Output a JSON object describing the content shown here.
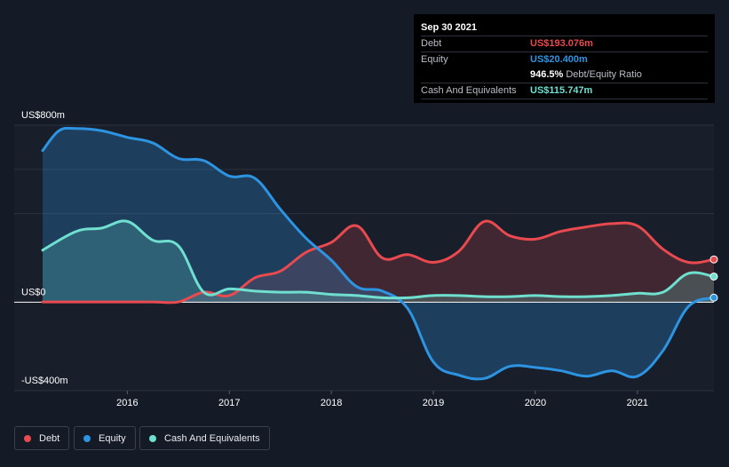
{
  "tooltip": {
    "date": "Sep 30 2021",
    "debt_label": "Debt",
    "debt_value": "US$193.076m",
    "equity_label": "Equity",
    "equity_value": "US$20.400m",
    "ratio_value": "946.5%",
    "ratio_label": "Debt/Equity Ratio",
    "cash_label": "Cash And Equivalents",
    "cash_value": "US$115.747m"
  },
  "legend": {
    "debt": "Debt",
    "equity": "Equity",
    "cash": "Cash And Equivalents"
  },
  "colors": {
    "debt": "#e84a4f",
    "equity": "#2d94e2",
    "cash": "#6fe0d0",
    "background": "#151b26"
  },
  "chart_data": {
    "type": "line",
    "title": "",
    "ylabel": "",
    "y_unit": "US$m",
    "ylim": [
      -400,
      800
    ],
    "y_ticks": [
      {
        "value": 800,
        "label": "US$800m"
      },
      {
        "value": 0,
        "label": "US$0"
      },
      {
        "value": -400,
        "label": "-US$400m"
      }
    ],
    "xlim": [
      2015.17,
      2021.75
    ],
    "x_ticks": [
      {
        "value": 2016,
        "label": "2016"
      },
      {
        "value": 2017,
        "label": "2017"
      },
      {
        "value": 2018,
        "label": "2018"
      },
      {
        "value": 2019,
        "label": "2019"
      },
      {
        "value": 2020,
        "label": "2020"
      },
      {
        "value": 2021,
        "label": "2021"
      }
    ],
    "series": [
      {
        "name": "Debt",
        "key": "debt",
        "x": [
          2015.17,
          2015.5,
          2015.75,
          2016.0,
          2016.25,
          2016.5,
          2016.75,
          2017.0,
          2017.25,
          2017.5,
          2017.75,
          2018.0,
          2018.25,
          2018.5,
          2018.75,
          2019.0,
          2019.25,
          2019.5,
          2019.75,
          2020.0,
          2020.25,
          2020.5,
          2020.75,
          2021.0,
          2021.25,
          2021.5,
          2021.75
        ],
        "values": [
          1,
          1,
          1,
          1,
          1,
          1,
          45,
          30,
          110,
          140,
          225,
          270,
          345,
          200,
          215,
          180,
          230,
          365,
          300,
          285,
          320,
          340,
          355,
          345,
          240,
          180,
          193.076
        ]
      },
      {
        "name": "Equity",
        "key": "equity",
        "x": [
          2015.17,
          2015.33,
          2015.5,
          2015.75,
          2016.0,
          2016.25,
          2016.5,
          2016.75,
          2017.0,
          2017.25,
          2017.5,
          2017.75,
          2018.0,
          2018.25,
          2018.5,
          2018.75,
          2019.0,
          2019.25,
          2019.5,
          2019.75,
          2020.0,
          2020.25,
          2020.5,
          2020.75,
          2021.0,
          2021.25,
          2021.5,
          2021.75
        ],
        "values": [
          685,
          775,
          785,
          775,
          745,
          720,
          650,
          640,
          570,
          560,
          420,
          290,
          190,
          70,
          50,
          -30,
          -270,
          -330,
          -345,
          -290,
          -295,
          -310,
          -335,
          -310,
          -335,
          -220,
          -20,
          20.4
        ]
      },
      {
        "name": "Cash And Equivalents",
        "key": "cash",
        "x": [
          2015.17,
          2015.5,
          2015.75,
          2016.0,
          2016.25,
          2016.5,
          2016.75,
          2017.0,
          2017.25,
          2017.5,
          2017.75,
          2018.0,
          2018.25,
          2018.5,
          2018.75,
          2019.0,
          2019.25,
          2019.5,
          2019.75,
          2020.0,
          2020.25,
          2020.5,
          2020.75,
          2021.0,
          2021.25,
          2021.5,
          2021.75
        ],
        "values": [
          235,
          320,
          335,
          365,
          280,
          255,
          45,
          60,
          50,
          45,
          45,
          35,
          30,
          20,
          20,
          30,
          30,
          25,
          25,
          30,
          25,
          25,
          30,
          40,
          45,
          130,
          115.747
        ]
      }
    ],
    "end_markers": true
  }
}
